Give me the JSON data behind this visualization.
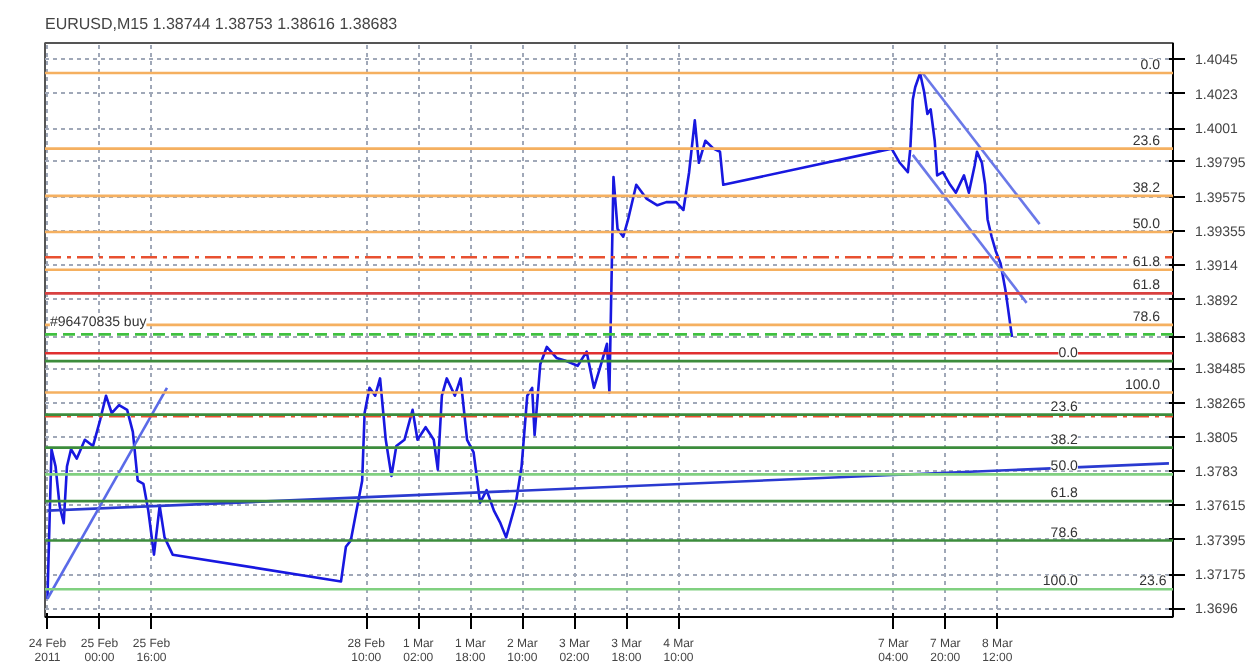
{
  "chart_data": {
    "type": "line",
    "title": "EURUSD,M15  1.38744 1.38753 1.38616 1.38683",
    "xlim": [
      "2011-02-24T07:15",
      "2011-03-10T18:00"
    ],
    "ylim": [
      1.36904,
      1.40551
    ],
    "xticks": [
      {
        "value": "2011-02-24T08:00",
        "label": "24 Feb 2011"
      },
      {
        "value": "2011-02-25T00:00",
        "label": "25 Feb 00:00"
      },
      {
        "value": "2011-02-25T16:00",
        "label": "25 Feb 16:00"
      },
      {
        "value": "2011-02-28T10:00",
        "label": "28 Feb 10:00"
      },
      {
        "value": "2011-03-01T02:00",
        "label": "1 Mar 02:00"
      },
      {
        "value": "2011-03-01T18:00",
        "label": "1 Mar 18:00"
      },
      {
        "value": "2011-03-02T10:00",
        "label": "2 Mar 10:00"
      },
      {
        "value": "2011-03-03T02:00",
        "label": "3 Mar 02:00"
      },
      {
        "value": "2011-03-03T18:00",
        "label": "3 Mar 18:00"
      },
      {
        "value": "2011-03-04T10:00",
        "label": "4 Mar 10:00"
      },
      {
        "value": "2011-03-07T04:00",
        "label": "7 Mar 04:00"
      },
      {
        "value": "2011-03-07T20:00",
        "label": "7 Mar 20:00"
      },
      {
        "value": "2011-03-08T12:00",
        "label": "8 Mar 12:00"
      }
    ],
    "yticks": [
      1.4045,
      1.4023,
      1.4001,
      1.39795,
      1.39575,
      1.39355,
      1.3914,
      1.3892,
      1.38683,
      1.38485,
      1.38265,
      1.3805,
      1.3783,
      1.37615,
      1.37395,
      1.37175,
      1.3696
    ],
    "grid": true,
    "series": [
      {
        "color": "#1818e0",
        "x": [
          "2011-02-24T08:00",
          "2011-02-24T09:15",
          "2011-02-24T10:30",
          "2011-02-24T11:45",
          "2011-02-24T13:00",
          "2011-02-24T14:00",
          "2011-02-24T15:15",
          "2011-02-24T17:00",
          "2011-02-24T19:30",
          "2011-02-24T22:00",
          "2011-02-25T00:15",
          "2011-02-25T02:00",
          "2011-02-25T03:45",
          "2011-02-25T06:00",
          "2011-02-25T08:30",
          "2011-02-25T10:15",
          "2011-02-25T11:45",
          "2011-02-25T13:30",
          "2011-02-25T15:00",
          "2011-02-25T16:45",
          "2011-02-25T18:30",
          "2011-02-25T20:00",
          "2011-02-25T22:30",
          "2011-02-28T02:15",
          "2011-02-28T03:45",
          "2011-02-28T05:15",
          "2011-02-28T07:00",
          "2011-02-28T08:45",
          "2011-02-28T09:30",
          "2011-02-28T11:00",
          "2011-02-28T12:45",
          "2011-02-28T14:15",
          "2011-02-28T16:00",
          "2011-02-28T17:45",
          "2011-02-28T19:15",
          "2011-02-28T21:45",
          "2011-03-01T00:15",
          "2011-03-01T01:45",
          "2011-03-01T04:15",
          "2011-03-01T06:45",
          "2011-03-01T08:00",
          "2011-03-01T09:15",
          "2011-03-01T10:45",
          "2011-03-01T13:15",
          "2011-03-01T15:00",
          "2011-03-01T17:00",
          "2011-03-01T19:00",
          "2011-03-01T21:00",
          "2011-03-01T23:00",
          "2011-03-02T01:15",
          "2011-03-02T03:15",
          "2011-03-02T05:00",
          "2011-03-02T06:30",
          "2011-03-02T08:00",
          "2011-03-02T09:45",
          "2011-03-02T11:30",
          "2011-03-02T13:00",
          "2011-03-02T13:45",
          "2011-03-02T15:30",
          "2011-03-02T17:30",
          "2011-03-02T20:30",
          "2011-03-02T23:30",
          "2011-03-03T03:00",
          "2011-03-03T05:45",
          "2011-03-03T08:00",
          "2011-03-03T09:45",
          "2011-03-03T12:00",
          "2011-03-03T12:45",
          "2011-03-03T14:00",
          "2011-03-03T15:15",
          "2011-03-03T17:00",
          "2011-03-03T18:30",
          "2011-03-03T21:00",
          "2011-03-04T00:15",
          "2011-03-04T03:30",
          "2011-03-04T06:15",
          "2011-03-04T09:15",
          "2011-03-04T11:30",
          "2011-03-04T13:15",
          "2011-03-04T15:00",
          "2011-03-04T16:15",
          "2011-03-04T18:15",
          "2011-03-04T20:45",
          "2011-03-04T22:45",
          "2011-03-04T23:45",
          "2011-03-07T03:30",
          "2011-03-07T06:00",
          "2011-03-07T08:30",
          "2011-03-07T09:15",
          "2011-03-07T10:00",
          "2011-03-07T10:45",
          "2011-03-07T12:15",
          "2011-03-07T13:30",
          "2011-03-07T14:30",
          "2011-03-07T15:30",
          "2011-03-07T16:45",
          "2011-03-07T17:30",
          "2011-03-07T19:15",
          "2011-03-07T21:30",
          "2011-03-07T23:15",
          "2011-03-08T01:45",
          "2011-03-08T03:15",
          "2011-03-08T05:00",
          "2011-03-08T05:45",
          "2011-03-08T07:15",
          "2011-03-08T08:15",
          "2011-03-08T09:00",
          "2011-03-08T10:15",
          "2011-03-08T11:30",
          "2011-03-08T13:00",
          "2011-03-08T14:30",
          "2011-03-08T15:15",
          "2011-03-08T16:30"
        ],
        "values": [
          1.3702,
          1.3797,
          1.3786,
          1.3761,
          1.375,
          1.3786,
          1.3797,
          1.3791,
          1.3803,
          1.3799,
          1.3816,
          1.3831,
          1.382,
          1.3825,
          1.3822,
          1.3808,
          1.3777,
          1.3775,
          1.3758,
          1.373,
          1.3761,
          1.3741,
          1.373,
          1.3713,
          1.3735,
          1.3739,
          1.3758,
          1.3777,
          1.382,
          1.3836,
          1.3831,
          1.3842,
          1.3803,
          1.378,
          1.3799,
          1.3803,
          1.3822,
          1.3803,
          1.3811,
          1.3803,
          1.3784,
          1.3831,
          1.3842,
          1.3831,
          1.3842,
          1.3803,
          1.3795,
          1.3763,
          1.3771,
          1.3758,
          1.375,
          1.3741,
          1.3752,
          1.3763,
          1.3786,
          1.3831,
          1.3836,
          1.3806,
          1.3851,
          1.3862,
          1.3855,
          1.3853,
          1.385,
          1.3859,
          1.3836,
          1.3848,
          1.3864,
          1.3833,
          1.397,
          1.3937,
          1.3932,
          1.3943,
          1.3965,
          1.3956,
          1.3952,
          1.3954,
          1.3954,
          1.3949,
          1.3973,
          1.4006,
          1.3979,
          1.3993,
          1.3988,
          1.3986,
          1.3965,
          1.3988,
          1.3979,
          1.3973,
          1.3988,
          1.4019,
          1.4027,
          1.4036,
          1.4024,
          1.401,
          1.4013,
          1.3993,
          1.3971,
          1.3973,
          1.3965,
          1.396,
          1.3971,
          1.396,
          1.3977,
          1.3986,
          1.3979,
          1.3965,
          1.3943,
          1.3932,
          1.3923,
          1.3915,
          1.3898,
          1.3887,
          1.38683
        ]
      },
      {
        "color": "#2a3ad0",
        "x": [
          "2011-02-24T08:00",
          "2011-03-10T16:45"
        ],
        "values": [
          1.3758,
          1.3788
        ]
      },
      {
        "color": "#5a6ae8",
        "x": [
          "2011-02-24T08:00",
          "2011-02-25T20:45"
        ],
        "values": [
          1.3702,
          1.3836
        ]
      },
      {
        "color": "#6a78e8",
        "x": [
          "2011-03-07T13:00",
          "2011-03-09T01:00"
        ],
        "values": [
          1.4036,
          1.394
        ]
      },
      {
        "color": "#6a78e8",
        "x": [
          "2011-03-07T10:00",
          "2011-03-08T21:00"
        ],
        "values": [
          1.3984,
          1.389
        ]
      }
    ],
    "ref_lines": [
      {
        "axis": "y",
        "value": 1.4036,
        "color": "#f5b060"
      },
      {
        "axis": "y",
        "value": 1.3988,
        "color": "#f5b060"
      },
      {
        "axis": "y",
        "value": 1.3958,
        "color": "#f5b060"
      },
      {
        "axis": "y",
        "value": 1.3935,
        "color": "#f5b060"
      },
      {
        "axis": "y",
        "value": 1.3911,
        "color": "#f5b060"
      },
      {
        "axis": "y",
        "value": 1.3876,
        "color": "#f5b060"
      },
      {
        "axis": "y",
        "value": 1.3833,
        "color": "#f5b060"
      },
      {
        "axis": "y",
        "value": 1.3896,
        "color": "#d84040"
      },
      {
        "axis": "y",
        "value": 1.3858,
        "color": "#e03030"
      },
      {
        "axis": "y",
        "value": 1.3919,
        "color": "#e85030",
        "line_style": "dashdot"
      },
      {
        "axis": "y",
        "value": 1.3818,
        "color": "#e85030",
        "line_style": "dashdot"
      },
      {
        "axis": "y",
        "value": 1.387,
        "color": "#40c040",
        "line_style": "dashed"
      },
      {
        "axis": "y",
        "value": 1.3853,
        "color": "#3c8c3c"
      },
      {
        "axis": "y",
        "value": 1.3819,
        "color": "#3c8c3c"
      },
      {
        "axis": "y",
        "value": 1.3798,
        "color": "#3c8c3c"
      },
      {
        "axis": "y",
        "value": 1.3781,
        "color": "#80d080"
      },
      {
        "axis": "y",
        "value": 1.3764,
        "color": "#3c8c3c"
      },
      {
        "axis": "y",
        "value": 1.3739,
        "color": "#3c8c3c"
      },
      {
        "axis": "y",
        "value": 1.3708,
        "color": "#80d080"
      }
    ],
    "annotations": [
      {
        "text": "#96470835 buy",
        "x": "2011-02-24T08:45",
        "y": 1.387
      },
      {
        "text": "0.0",
        "x": "2011-03-10T14:00",
        "y": 1.4036
      },
      {
        "text": "23.6",
        "x": "2011-03-10T14:00",
        "y": 1.3988
      },
      {
        "text": "38.2",
        "x": "2011-03-10T14:00",
        "y": 1.3958
      },
      {
        "text": "50.0",
        "x": "2011-03-10T14:00",
        "y": 1.3935
      },
      {
        "text": "61.8",
        "x": "2011-03-10T14:00",
        "y": 1.3911
      },
      {
        "text": "61.8",
        "x": "2011-03-10T14:00",
        "y": 1.3896
      },
      {
        "text": "78.6",
        "x": "2011-03-10T14:00",
        "y": 1.3876
      },
      {
        "text": "100.0",
        "x": "2011-03-10T14:00",
        "y": 1.3833
      },
      {
        "text": "0.0",
        "x": "2011-03-09T12:45",
        "y": 1.3853
      },
      {
        "text": "23.6",
        "x": "2011-03-09T12:45",
        "y": 1.3819
      },
      {
        "text": "38.2",
        "x": "2011-03-09T12:45",
        "y": 1.3798
      },
      {
        "text": "50.0",
        "x": "2011-03-09T12:45",
        "y": 1.3781
      },
      {
        "text": "61.8",
        "x": "2011-03-09T12:45",
        "y": 1.3764
      },
      {
        "text": "78.6",
        "x": "2011-03-09T12:45",
        "y": 1.3739
      },
      {
        "text": "100.0",
        "x": "2011-03-09T12:45",
        "y": 1.3708
      },
      {
        "text": "23.6",
        "x": "2011-03-10T16:00",
        "y": 1.3708
      }
    ]
  }
}
